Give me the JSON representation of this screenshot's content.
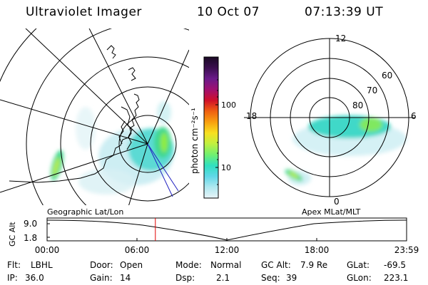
{
  "header": {
    "instrument": "Ultraviolet Imager",
    "date": "10 Oct 07",
    "time": "07:13:39 UT"
  },
  "colorbar": {
    "unit_label": "photon cm⁻²s⁻¹",
    "tick_labels": [
      "100",
      "10"
    ],
    "scale": "log",
    "colors": [
      "#1a0a24",
      "#3b0f4f",
      "#6a1a8a",
      "#a01070",
      "#d0102a",
      "#f06010",
      "#f8a010",
      "#f8e020",
      "#c0f040",
      "#70f070",
      "#30e0c0",
      "#60d8e8",
      "#b0e8f0",
      "#e8f4f8"
    ]
  },
  "left_panel": {
    "projection_label": "Geographic Lat/Lon"
  },
  "right_panel": {
    "projection_label": "Apex MLat/MLT",
    "mlt_labels": {
      "top": "12",
      "left": "18",
      "right": "6",
      "bottom": "0"
    },
    "mlat_labels": [
      "60",
      "70",
      "80"
    ]
  },
  "timeline": {
    "y_label": "GC Alt",
    "y_ticks": [
      "9.0",
      "1.8"
    ],
    "x_ticks": [
      "00:00",
      "06:00",
      "12:00",
      "18:00",
      "23:59"
    ],
    "current_time_fraction": 0.3012,
    "marker_color": "#e00000"
  },
  "info": {
    "flt_label": "Flt:",
    "flt_value": "LBHL",
    "ip_label": "IP:",
    "ip_value": "36.0",
    "door_label": "Door:",
    "door_value": "Open",
    "gain_label": "Gain:",
    "gain_value": "14",
    "mode_label": "Mode:",
    "mode_value": "Normal",
    "dsp_label": "Dsp:",
    "dsp_value": "2.1",
    "gcalt_label": "GC Alt:",
    "gcalt_value": "7.9 Re",
    "seq_label": "Seq:",
    "seq_value": "39",
    "glat_label": "GLat:",
    "glat_value": "-69.5",
    "glon_label": "GLon:",
    "glon_value": "223.1"
  }
}
